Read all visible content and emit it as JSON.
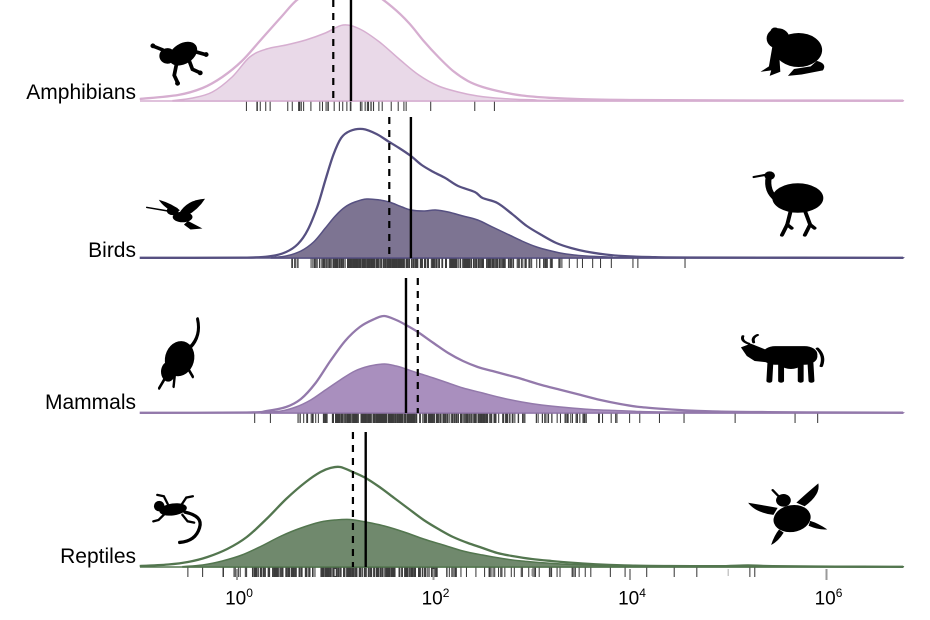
{
  "chart_data": {
    "type": "ridgeline_density",
    "title": "",
    "x_axis": {
      "scale": "log10",
      "range_log10": [
        -0.99,
        6.78
      ],
      "ticks": [
        {
          "base": "10",
          "exp": "0",
          "log": 0
        },
        {
          "base": "10",
          "exp": "2",
          "log": 2
        },
        {
          "base": "10",
          "exp": "4",
          "log": 4
        },
        {
          "base": "10",
          "exp": "6",
          "log": 6
        }
      ],
      "minor_tick_logs": [
        1,
        3,
        5
      ]
    },
    "legend": "none",
    "grid": "off",
    "rows": [
      {
        "label": "Amphibians",
        "icons": {
          "left": "tree-frog-icon",
          "right": "toad-icon"
        },
        "line_color": "#d6aed0",
        "fill_color": "#e9d9e8",
        "solid_marker": {
          "log": 1.16,
          "approx_value": 14.5
        },
        "dashed_marker": {
          "log": 0.98,
          "approx_value": 9.5
        },
        "outline_curve": [
          [
            -0.99,
            2
          ],
          [
            -0.6,
            6
          ],
          [
            -0.35,
            13
          ],
          [
            -0.15,
            24
          ],
          [
            0.05,
            40
          ],
          [
            0.25,
            62
          ],
          [
            0.45,
            84
          ],
          [
            0.61,
            101
          ],
          [
            0.8,
            112
          ],
          [
            1.0,
            118
          ],
          [
            1.2,
            116
          ],
          [
            1.4,
            107
          ],
          [
            1.58,
            94
          ],
          [
            1.75,
            78
          ],
          [
            1.9,
            60
          ],
          [
            2.05,
            44
          ],
          [
            2.2,
            30
          ],
          [
            2.35,
            20
          ],
          [
            2.5,
            14
          ],
          [
            2.7,
            9
          ],
          [
            2.9,
            5.5
          ],
          [
            3.18,
            3.2
          ],
          [
            3.5,
            1.8
          ],
          [
            4.0,
            1
          ],
          [
            5.0,
            0.6
          ],
          [
            6.78,
            0.3
          ]
        ],
        "filled_curve": [
          [
            -0.65,
            0.4
          ],
          [
            -0.45,
            3
          ],
          [
            -0.25,
            9
          ],
          [
            -0.05,
            24
          ],
          [
            0.13,
            44
          ],
          [
            0.3,
            52
          ],
          [
            0.5,
            56
          ],
          [
            0.7,
            61
          ],
          [
            0.9,
            68
          ],
          [
            1.08,
            76
          ],
          [
            1.25,
            72
          ],
          [
            1.45,
            59
          ],
          [
            1.65,
            42
          ],
          [
            1.85,
            26
          ],
          [
            2.05,
            15
          ],
          [
            2.25,
            9
          ],
          [
            2.45,
            5
          ],
          [
            2.7,
            2.5
          ],
          [
            3.0,
            1.2
          ],
          [
            3.5,
            0.5
          ],
          [
            6.78,
            0.2
          ]
        ],
        "rug": {
          "count": 42,
          "range_log": [
            -0.1,
            2.35
          ],
          "seed": 11,
          "extra_tick_logs": [
            2.42,
            2.62
          ]
        }
      },
      {
        "label": "Birds",
        "icons": {
          "left": "hummingbird-icon",
          "right": "emu-icon"
        },
        "line_color": "#565081",
        "fill_color": "#7d7492",
        "solid_marker": {
          "log": 1.77,
          "approx_value": 59
        },
        "dashed_marker": {
          "log": 1.55,
          "approx_value": 35
        },
        "outline_curve": [
          [
            -0.99,
            0.2
          ],
          [
            0.1,
            0.4
          ],
          [
            0.35,
            2
          ],
          [
            0.5,
            6
          ],
          [
            0.62,
            14
          ],
          [
            0.72,
            28
          ],
          [
            0.82,
            52
          ],
          [
            0.9,
            78
          ],
          [
            0.98,
            103
          ],
          [
            1.06,
            120
          ],
          [
            1.15,
            127
          ],
          [
            1.28,
            129
          ],
          [
            1.42,
            124
          ],
          [
            1.55,
            116
          ],
          [
            1.65,
            110
          ],
          [
            1.77,
            102
          ],
          [
            1.88,
            93
          ],
          [
            2.0,
            86
          ],
          [
            2.12,
            80
          ],
          [
            2.25,
            72
          ],
          [
            2.42,
            66
          ],
          [
            2.5,
            60
          ],
          [
            2.65,
            55
          ],
          [
            2.8,
            44
          ],
          [
            2.95,
            32
          ],
          [
            3.1,
            23
          ],
          [
            3.25,
            15
          ],
          [
            3.4,
            10
          ],
          [
            3.55,
            6.5
          ],
          [
            3.75,
            3.5
          ],
          [
            3.95,
            1.8
          ],
          [
            4.2,
            1
          ],
          [
            4.6,
            0.5
          ],
          [
            6.78,
            0.2
          ]
        ],
        "filled_curve": [
          [
            0.35,
            0.4
          ],
          [
            0.5,
            2
          ],
          [
            0.65,
            7
          ],
          [
            0.78,
            16
          ],
          [
            0.9,
            30
          ],
          [
            1.0,
            42
          ],
          [
            1.1,
            51
          ],
          [
            1.2,
            56
          ],
          [
            1.32,
            59
          ],
          [
            1.45,
            58
          ],
          [
            1.55,
            56
          ],
          [
            1.68,
            51
          ],
          [
            1.77,
            48
          ],
          [
            1.9,
            47
          ],
          [
            2.02,
            48
          ],
          [
            2.15,
            46
          ],
          [
            2.3,
            42
          ],
          [
            2.45,
            38
          ],
          [
            2.6,
            31
          ],
          [
            2.75,
            24
          ],
          [
            2.9,
            17
          ],
          [
            3.05,
            11
          ],
          [
            3.2,
            7
          ],
          [
            3.35,
            4
          ],
          [
            3.55,
            2
          ],
          [
            3.8,
            1
          ],
          [
            4.1,
            0.4
          ],
          [
            6.78,
            0.15
          ]
        ],
        "rug": {
          "count": 380,
          "range_log": [
            0.55,
            3.55
          ],
          "seed": 22,
          "extra_tick_logs": [
            3.62,
            3.7,
            3.81,
            4.03,
            4.08,
            4.56
          ]
        }
      },
      {
        "label": "Mammals",
        "icons": {
          "left": "rodent-icon",
          "right": "cow-icon"
        },
        "line_color": "#9379ab",
        "fill_color": "#a98fbe",
        "solid_marker": {
          "log": 1.72,
          "approx_value": 52
        },
        "dashed_marker": {
          "log": 1.84,
          "approx_value": 69
        },
        "outline_curve": [
          [
            -0.99,
            0.2
          ],
          [
            0.1,
            0.5
          ],
          [
            0.3,
            2
          ],
          [
            0.5,
            6
          ],
          [
            0.65,
            14
          ],
          [
            0.8,
            30
          ],
          [
            0.95,
            52
          ],
          [
            1.1,
            72
          ],
          [
            1.25,
            86
          ],
          [
            1.4,
            94
          ],
          [
            1.5,
            97
          ],
          [
            1.62,
            93
          ],
          [
            1.72,
            88
          ],
          [
            1.84,
            81
          ],
          [
            2.0,
            70
          ],
          [
            2.15,
            60
          ],
          [
            2.3,
            52
          ],
          [
            2.45,
            46
          ],
          [
            2.6,
            42
          ],
          [
            2.75,
            38
          ],
          [
            2.9,
            34
          ],
          [
            3.1,
            28
          ],
          [
            3.3,
            23
          ],
          [
            3.5,
            18
          ],
          [
            3.7,
            13
          ],
          [
            3.9,
            9
          ],
          [
            4.1,
            6
          ],
          [
            4.35,
            4
          ],
          [
            4.6,
            2.5
          ],
          [
            4.9,
            1.5
          ],
          [
            5.3,
            1
          ],
          [
            5.8,
            0.6
          ],
          [
            6.78,
            0.3
          ]
        ],
        "filled_curve": [
          [
            0.25,
            0.4
          ],
          [
            0.45,
            2
          ],
          [
            0.6,
            6
          ],
          [
            0.75,
            13
          ],
          [
            0.9,
            23
          ],
          [
            1.05,
            33
          ],
          [
            1.2,
            42
          ],
          [
            1.35,
            47
          ],
          [
            1.5,
            49
          ],
          [
            1.62,
            47
          ],
          [
            1.72,
            44
          ],
          [
            1.84,
            40
          ],
          [
            2.0,
            35
          ],
          [
            2.15,
            30
          ],
          [
            2.3,
            25
          ],
          [
            2.5,
            20
          ],
          [
            2.7,
            15
          ],
          [
            2.9,
            11
          ],
          [
            3.1,
            8
          ],
          [
            3.35,
            5.5
          ],
          [
            3.6,
            3.5
          ],
          [
            3.85,
            2.5
          ],
          [
            4.1,
            1.5
          ],
          [
            4.4,
            1
          ],
          [
            4.8,
            0.6
          ],
          [
            5.5,
            0.3
          ],
          [
            6.78,
            0.15
          ]
        ],
        "rug": {
          "count": 400,
          "range_log": [
            0.6,
            4.15
          ],
          "seed": 33,
          "extra_tick_logs": [
            0.18,
            0.34,
            4.3,
            4.55,
            5.07,
            5.68,
            5.91
          ]
        }
      },
      {
        "label": "Reptiles",
        "icons": {
          "left": "lizard-icon",
          "right": "sea-turtle-icon"
        },
        "line_color": "#53764f",
        "fill_color": "#70896d",
        "solid_marker": {
          "log": 1.31,
          "approx_value": 20
        },
        "dashed_marker": {
          "log": 1.18,
          "approx_value": 15
        },
        "outline_curve": [
          [
            -0.99,
            1
          ],
          [
            -0.7,
            2.5
          ],
          [
            -0.5,
            5
          ],
          [
            -0.3,
            10
          ],
          [
            -0.1,
            18
          ],
          [
            0.1,
            30
          ],
          [
            0.3,
            48
          ],
          [
            0.5,
            68
          ],
          [
            0.7,
            85
          ],
          [
            0.85,
            95
          ],
          [
            0.95,
            99
          ],
          [
            1.05,
            100
          ],
          [
            1.18,
            95
          ],
          [
            1.31,
            89
          ],
          [
            1.45,
            80
          ],
          [
            1.6,
            69
          ],
          [
            1.75,
            58
          ],
          [
            1.9,
            47
          ],
          [
            2.05,
            38
          ],
          [
            2.2,
            30
          ],
          [
            2.35,
            24
          ],
          [
            2.5,
            19
          ],
          [
            2.65,
            14
          ],
          [
            2.8,
            11
          ],
          [
            3.0,
            8
          ],
          [
            3.2,
            6
          ],
          [
            3.45,
            4
          ],
          [
            3.7,
            2.5
          ],
          [
            4.0,
            1.5
          ],
          [
            4.4,
            1
          ],
          [
            4.9,
            0.8
          ],
          [
            5.2,
            1.6
          ],
          [
            5.45,
            0.8
          ],
          [
            6.1,
            0.4
          ],
          [
            6.78,
            0.25
          ]
        ],
        "filled_curve": [
          [
            -0.55,
            0.4
          ],
          [
            -0.35,
            2
          ],
          [
            -0.15,
            6
          ],
          [
            0.05,
            12
          ],
          [
            0.25,
            21
          ],
          [
            0.45,
            31
          ],
          [
            0.65,
            39
          ],
          [
            0.85,
            45
          ],
          [
            1.0,
            47
          ],
          [
            1.15,
            47.5
          ],
          [
            1.31,
            45
          ],
          [
            1.5,
            41
          ],
          [
            1.7,
            35
          ],
          [
            1.9,
            28
          ],
          [
            2.1,
            22
          ],
          [
            2.3,
            16
          ],
          [
            2.5,
            12
          ],
          [
            2.7,
            8.5
          ],
          [
            2.9,
            6
          ],
          [
            3.15,
            4
          ],
          [
            3.4,
            2.5
          ],
          [
            3.7,
            1.5
          ],
          [
            4.0,
            0.9
          ],
          [
            4.5,
            0.6
          ],
          [
            5.1,
            0.8
          ],
          [
            5.3,
            1.1
          ],
          [
            5.6,
            0.5
          ],
          [
            6.2,
            0.3
          ],
          [
            6.78,
            0.2
          ]
        ],
        "rug": {
          "count": 300,
          "range_log": [
            -0.15,
            3.65
          ],
          "seed": 44,
          "extra_tick_logs": [
            -0.5,
            -0.35,
            3.8,
            3.95,
            4.17,
            4.45,
            4.68,
            5.22,
            5.27
          ]
        }
      }
    ],
    "marker_line_styles": {
      "solid": "solid black vertical line",
      "dashed": "dashed black vertical line"
    },
    "rug_color": "#1a1a1a"
  }
}
